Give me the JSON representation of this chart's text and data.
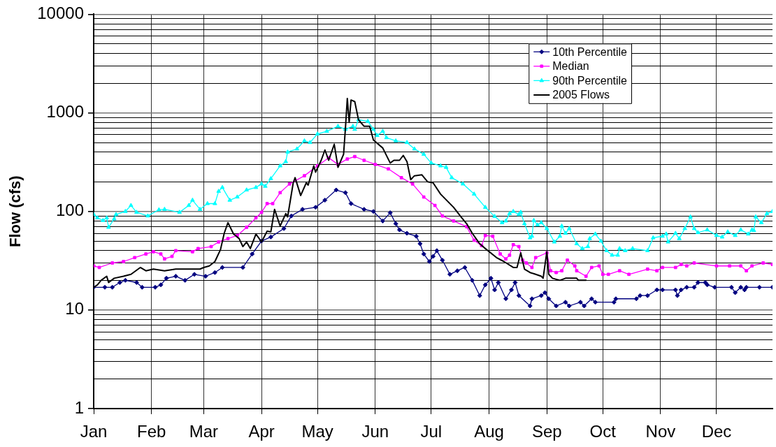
{
  "chart_data": {
    "type": "line",
    "ylabel": "Flow (cfs)",
    "log": "y",
    "ylim": [
      1,
      10000
    ],
    "yticks": [
      1,
      10,
      100,
      1000,
      10000
    ],
    "xlim": [
      "--01-01",
      "--12-31"
    ],
    "xticks": [
      {
        "value": "--01-01",
        "label": "Jan"
      },
      {
        "value": "--02-01",
        "label": "Feb"
      },
      {
        "value": "--03-01",
        "label": "Mar"
      },
      {
        "value": "--04-01",
        "label": "Apr"
      },
      {
        "value": "--05-01",
        "label": "May"
      },
      {
        "value": "--06-01",
        "label": "Jun"
      },
      {
        "value": "--07-01",
        "label": "Jul"
      },
      {
        "value": "--08-01",
        "label": "Aug"
      },
      {
        "value": "--09-01",
        "label": "Sep"
      },
      {
        "value": "--10-01",
        "label": "Oct"
      },
      {
        "value": "--11-01",
        "label": "Nov"
      },
      {
        "value": "--12-01",
        "label": "Dec"
      }
    ],
    "grid": true,
    "legend": "top right",
    "series": [
      {
        "name": "10th Percentile",
        "color": "#000080",
        "marker": "diamond",
        "x": [
          "--01-01",
          "--01-07",
          "--01-11",
          "--01-15",
          "--01-18",
          "--01-24",
          "--01-27",
          "--02-03",
          "--02-06",
          "--02-09",
          "--02-14",
          "--02-19",
          "--02-24",
          "--03-02",
          "--03-07",
          "--03-11",
          "--03-22",
          "--03-27",
          "--04-01",
          "--04-06",
          "--04-13",
          "--04-17",
          "--04-23",
          "--04-30",
          "--05-05",
          "--05-11",
          "--05-16",
          "--05-19",
          "--05-26",
          "--05-31",
          "--06-05",
          "--06-09",
          "--06-12",
          "--06-14",
          "--06-18",
          "--06-23",
          "--06-25",
          "--06-27",
          "--06-30",
          "--07-02",
          "--07-04",
          "--07-07",
          "--07-11",
          "--07-15",
          "--07-19",
          "--07-23",
          "--07-27",
          "--07-30",
          "--08-02",
          "--08-04",
          "--08-06",
          "--08-10",
          "--08-13",
          "--08-15",
          "--08-17",
          "--08-23",
          "--08-24",
          "--08-29",
          "--08-31",
          "--09-02",
          "--09-06",
          "--09-11",
          "--09-13",
          "--09-19",
          "--09-21",
          "--09-25",
          "--09-27",
          "--10-07",
          "--10-08",
          "--10-19",
          "--10-21",
          "--10-25",
          "--10-30",
          "--11-02",
          "--11-09",
          "--11-10",
          "--11-12",
          "--11-15",
          "--11-19",
          "--11-21",
          "--11-25",
          "--11-26",
          "--11-30",
          "--12-09",
          "--12-11",
          "--12-14",
          "--12-16",
          "--12-17",
          "--12-24",
          "--12-31"
        ],
        "values": [
          17,
          17,
          17,
          19,
          20,
          19,
          17,
          17,
          18,
          21,
          22,
          20,
          23,
          22,
          24,
          27,
          27,
          37,
          50,
          55,
          67,
          90,
          105,
          110,
          130,
          165,
          155,
          120,
          105,
          100,
          80,
          97,
          75,
          65,
          60,
          56,
          47,
          37,
          31,
          35,
          40,
          32,
          23,
          25,
          27,
          20,
          14,
          18,
          21,
          16,
          19,
          13,
          16,
          19,
          14,
          11,
          13,
          14,
          15,
          13,
          11,
          12,
          11,
          12,
          11,
          13,
          12,
          12,
          13,
          13,
          14,
          14,
          16,
          16,
          16,
          14,
          16,
          17,
          17,
          19,
          19,
          18,
          17,
          17,
          15,
          17,
          16,
          17,
          17,
          17
        ]
      },
      {
        "name": "Median",
        "color": "#ff00ff",
        "marker": "square",
        "x": [
          "--01-01",
          "--01-04",
          "--01-11",
          "--01-17",
          "--01-23",
          "--01-29",
          "--02-02",
          "--02-06",
          "--02-08",
          "--02-12",
          "--02-14",
          "--02-23",
          "--02-26",
          "--03-05",
          "--03-09",
          "--03-14",
          "--03-19",
          "--03-24",
          "--03-29",
          "--04-01",
          "--04-04",
          "--04-07",
          "--04-11",
          "--04-16",
          "--04-24",
          "--05-01",
          "--05-07",
          "--05-12",
          "--05-17",
          "--05-21",
          "--05-26",
          "--06-01",
          "--06-08",
          "--06-15",
          "--06-21",
          "--06-27",
          "--07-03",
          "--07-07",
          "--07-13",
          "--07-20",
          "--07-24",
          "--07-28",
          "--07-30",
          "--08-03",
          "--08-07",
          "--08-10",
          "--08-12",
          "--08-14",
          "--08-17",
          "--08-19",
          "--08-21",
          "--08-24",
          "--08-26",
          "--09-01",
          "--09-03",
          "--09-06",
          "--09-09",
          "--09-12",
          "--09-16",
          "--09-17",
          "--09-22",
          "--09-25",
          "--09-29",
          "--10-01",
          "--10-04",
          "--10-10",
          "--10-15",
          "--10-25",
          "--10-30",
          "--11-02",
          "--11-09",
          "--11-12",
          "--11-15",
          "--11-19",
          "--12-01",
          "--12-08",
          "--12-14",
          "--12-17",
          "--12-20",
          "--12-26",
          "--12-31"
        ],
        "values": [
          28,
          27,
          30,
          31,
          34,
          37,
          39,
          37,
          33,
          35,
          40,
          39,
          42,
          44,
          49,
          53,
          57,
          69,
          86,
          98,
          120,
          120,
          155,
          190,
          230,
          290,
          350,
          300,
          340,
          360,
          330,
          300,
          270,
          220,
          190,
          140,
          115,
          90,
          80,
          70,
          51,
          45,
          57,
          56,
          37,
          33,
          36,
          46,
          44,
          32,
          30,
          27,
          34,
          38,
          25,
          24,
          25,
          32,
          28,
          25,
          22,
          27,
          28,
          23,
          23,
          25,
          23,
          26,
          25,
          27,
          27,
          29,
          28,
          30,
          28,
          28,
          28,
          25,
          28,
          30,
          29
        ]
      },
      {
        "name": "90th Percentile",
        "color": "#00ffff",
        "marker": "triangle",
        "x": [
          "--01-01",
          "--01-03",
          "--01-06",
          "--01-08",
          "--01-09",
          "--01-12",
          "--01-13",
          "--01-18",
          "--01-21",
          "--01-24",
          "--01-30",
          "--02-05",
          "--02-08",
          "--02-16",
          "--02-21",
          "--02-23",
          "--02-27",
          "--03-03",
          "--03-07",
          "--03-09",
          "--03-11",
          "--03-15",
          "--03-19",
          "--03-24",
          "--03-29",
          "--04-01",
          "--04-03",
          "--04-06",
          "--04-11",
          "--04-14",
          "--04-15",
          "--04-20",
          "--04-24",
          "--04-27",
          "--05-01",
          "--05-06",
          "--05-12",
          "--05-16",
          "--05-20",
          "--05-21",
          "--05-23",
          "--05-28",
          "--05-31",
          "--06-02",
          "--06-05",
          "--06-07",
          "--06-12",
          "--06-18",
          "--06-22",
          "--06-27",
          "--07-01",
          "--07-06",
          "--07-09",
          "--07-12",
          "--07-18",
          "--07-24",
          "--07-30",
          "--08-04",
          "--08-08",
          "--08-10",
          "--08-12",
          "--08-14",
          "--08-17",
          "--08-18",
          "--08-20",
          "--08-23",
          "--08-24",
          "--08-25",
          "--08-27",
          "--08-29",
          "--09-01",
          "--09-05",
          "--09-08",
          "--09-09",
          "--09-11",
          "--09-13",
          "--09-17",
          "--09-20",
          "--09-23",
          "--09-24",
          "--09-27",
          "--09-30",
          "--10-03",
          "--10-06",
          "--10-09",
          "--10-10",
          "--10-13",
          "--10-17",
          "--10-25",
          "--10-28",
          "--11-02",
          "--11-04",
          "--11-05",
          "--11-09",
          "--11-11",
          "--11-14",
          "--11-17",
          "--11-19",
          "--11-21",
          "--11-26",
          "--12-01",
          "--12-04",
          "--12-07",
          "--12-11",
          "--12-14",
          "--12-18",
          "--12-20",
          "--12-21",
          "--12-22",
          "--12-25",
          "--12-28",
          "--12-31"
        ],
        "values": [
          93,
          86,
          81,
          86,
          69,
          84,
          93,
          100,
          115,
          98,
          90,
          104,
          105,
          98,
          115,
          130,
          105,
          120,
          120,
          160,
          175,
          130,
          140,
          165,
          175,
          190,
          180,
          215,
          290,
          320,
          400,
          430,
          520,
          500,
          610,
          650,
          730,
          680,
          730,
          680,
          850,
          820,
          680,
          590,
          650,
          560,
          520,
          500,
          430,
          380,
          310,
          290,
          280,
          220,
          190,
          150,
          110,
          89,
          77,
          80,
          95,
          100,
          93,
          98,
          75,
          54,
          56,
          81,
          73,
          77,
          67,
          49,
          56,
          71,
          60,
          67,
          47,
          42,
          44,
          53,
          59,
          50,
          40,
          36,
          36,
          42,
          40,
          42,
          40,
          54,
          56,
          59,
          49,
          60,
          53,
          67,
          88,
          67,
          61,
          65,
          57,
          55,
          62,
          57,
          65,
          59,
          65,
          64,
          88,
          77,
          95,
          100
        ]
      },
      {
        "name": "2005 Flows",
        "color": "#000000",
        "x": [
          "--01-01",
          "--01-03",
          "--01-05",
          "--01-08",
          "--01-09",
          "--01-12",
          "--01-17",
          "--01-21",
          "--01-26",
          "--01-29",
          "--02-02",
          "--02-08",
          "--02-14",
          "--02-27",
          "--03-01",
          "--03-04",
          "--03-07",
          "--03-10",
          "--03-12",
          "--03-14",
          "--03-17",
          "--03-20",
          "--03-22",
          "--03-24",
          "--03-26",
          "--03-29",
          "--04-01",
          "--04-04",
          "--04-06",
          "--04-08",
          "--04-11",
          "--04-14",
          "--04-15",
          "--04-18",
          "--04-19",
          "--04-22",
          "--04-25",
          "--04-26",
          "--04-29",
          "--04-30",
          "--05-03",
          "--05-05",
          "--05-07",
          "--05-10",
          "--05-12",
          "--05-15",
          "--05-16",
          "--05-17",
          "--05-18",
          "--05-19",
          "--05-21",
          "--05-23",
          "--05-26",
          "--05-29",
          "--05-31",
          "--06-05",
          "--06-09",
          "--06-11",
          "--06-14",
          "--06-16",
          "--06-18",
          "--06-20",
          "--06-22",
          "--06-26",
          "--06-29",
          "--07-02",
          "--07-06",
          "--07-13",
          "--07-17",
          "--07-20",
          "--07-23",
          "--07-27",
          "--07-30",
          "--08-05",
          "--08-09",
          "--08-14",
          "--08-16",
          "--08-18",
          "--08-20",
          "--08-23",
          "--08-26",
          "--08-29",
          "--08-30",
          "--09-01",
          "--09-02",
          "--09-04",
          "--09-08",
          "--09-11",
          "--09-17",
          "--09-18",
          "--09-22"
        ],
        "values": [
          17,
          18,
          20,
          22,
          19,
          21,
          22,
          23,
          27,
          25,
          26,
          25,
          26,
          26,
          27,
          28,
          31,
          41,
          60,
          77,
          59,
          53,
          44,
          49,
          42,
          59,
          49,
          63,
          62,
          105,
          71,
          95,
          88,
          195,
          220,
          145,
          195,
          185,
          290,
          250,
          330,
          420,
          330,
          480,
          280,
          380,
          700,
          1400,
          800,
          1350,
          1300,
          850,
          730,
          730,
          530,
          440,
          310,
          330,
          330,
          370,
          320,
          210,
          230,
          235,
          200,
          195,
          150,
          110,
          88,
          75,
          60,
          47,
          42,
          34,
          31,
          27,
          27,
          38,
          26,
          24,
          23,
          22,
          21,
          39,
          23,
          21,
          20,
          21,
          21,
          20,
          20
        ]
      }
    ]
  }
}
